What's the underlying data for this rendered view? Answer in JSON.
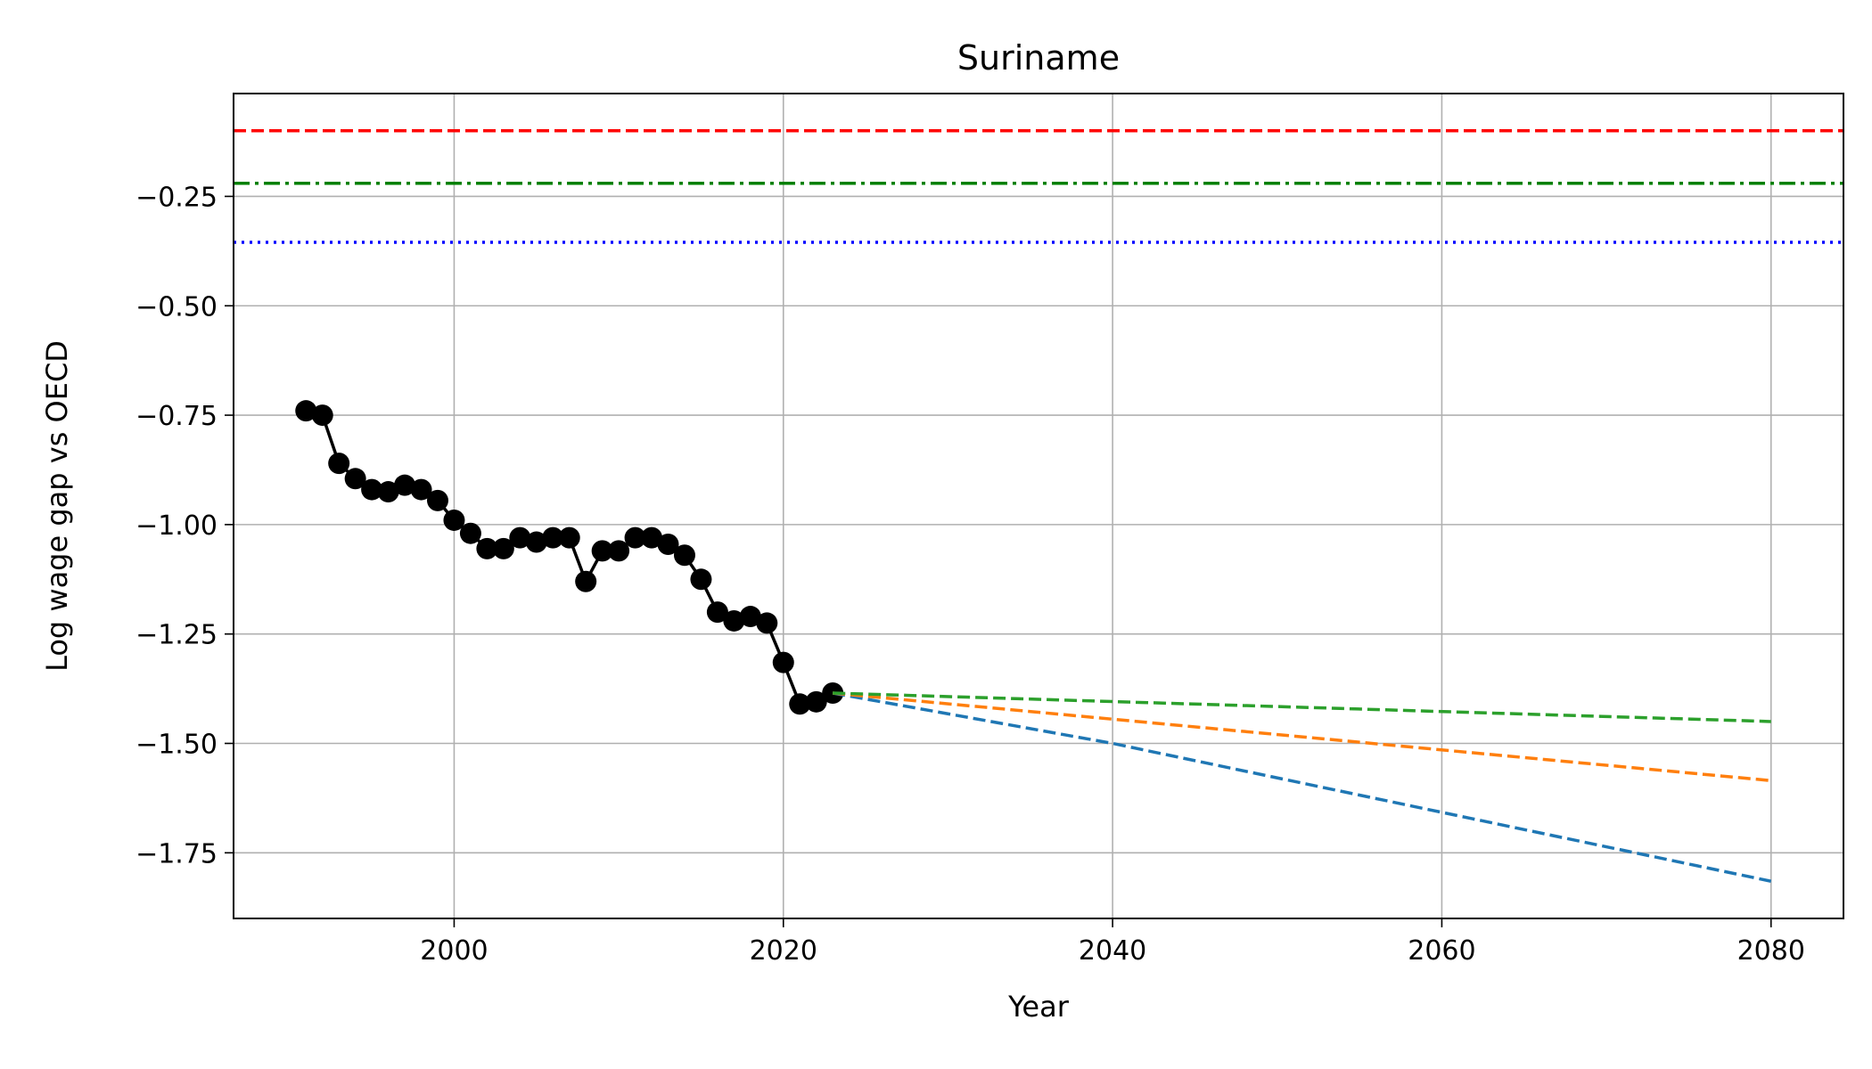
{
  "chart_data": {
    "type": "line",
    "title": "Suriname",
    "xlabel": "Year",
    "ylabel": "Log wage gap vs OECD",
    "xlim": [
      1986.6,
      2084.4
    ],
    "ylim": [
      -1.9,
      -0.015
    ],
    "xticks": [
      2000,
      2020,
      2040,
      2060,
      2080
    ],
    "xtick_labels": [
      "2000",
      "2020",
      "2040",
      "2060",
      "2080"
    ],
    "yticks": [
      -0.25,
      -0.5,
      -0.75,
      -1.0,
      -1.25,
      -1.5,
      -1.75
    ],
    "ytick_labels": [
      "−0.25",
      "−0.50",
      "−0.75",
      "−1.00",
      "−1.25",
      "−1.50",
      "−1.75"
    ],
    "grid": true,
    "legend": "none",
    "reference_lines": [
      {
        "y": -0.1,
        "color": "#ff0000",
        "style": "dashed"
      },
      {
        "y": -0.22,
        "color": "#008000",
        "style": "dashdot"
      },
      {
        "y": -0.355,
        "color": "#0000ff",
        "style": "dotted"
      }
    ],
    "series": [
      {
        "style": "line-markers",
        "color": "#000000",
        "x": [
          1991,
          1992,
          1993,
          1994,
          1995,
          1996,
          1997,
          1998,
          1999,
          2000,
          2001,
          2002,
          2003,
          2004,
          2005,
          2006,
          2007,
          2008,
          2009,
          2010,
          2011,
          2012,
          2013,
          2014,
          2015,
          2016,
          2017,
          2018,
          2019,
          2020,
          2021,
          2022,
          2023
        ],
        "y": [
          -0.74,
          -0.75,
          -0.86,
          -0.895,
          -0.92,
          -0.925,
          -0.91,
          -0.92,
          -0.945,
          -0.99,
          -1.02,
          -1.055,
          -1.055,
          -1.03,
          -1.04,
          -1.03,
          -1.03,
          -1.13,
          -1.06,
          -1.06,
          -1.03,
          -1.03,
          -1.045,
          -1.07,
          -1.125,
          -1.2,
          -1.22,
          -1.21,
          -1.225,
          -1.315,
          -1.41,
          -1.405,
          -1.385
        ]
      },
      {
        "style": "dashed",
        "color": "#1f77b4",
        "x": [
          2023,
          2040,
          2080
        ],
        "y": [
          -1.385,
          -1.5,
          -1.815
        ]
      },
      {
        "style": "dashed",
        "color": "#ff7f0e",
        "x": [
          2023,
          2080
        ],
        "y": [
          -1.385,
          -1.585
        ]
      },
      {
        "style": "dashed",
        "color": "#2ca02c",
        "x": [
          2023,
          2080
        ],
        "y": [
          -1.385,
          -1.45
        ]
      }
    ]
  }
}
